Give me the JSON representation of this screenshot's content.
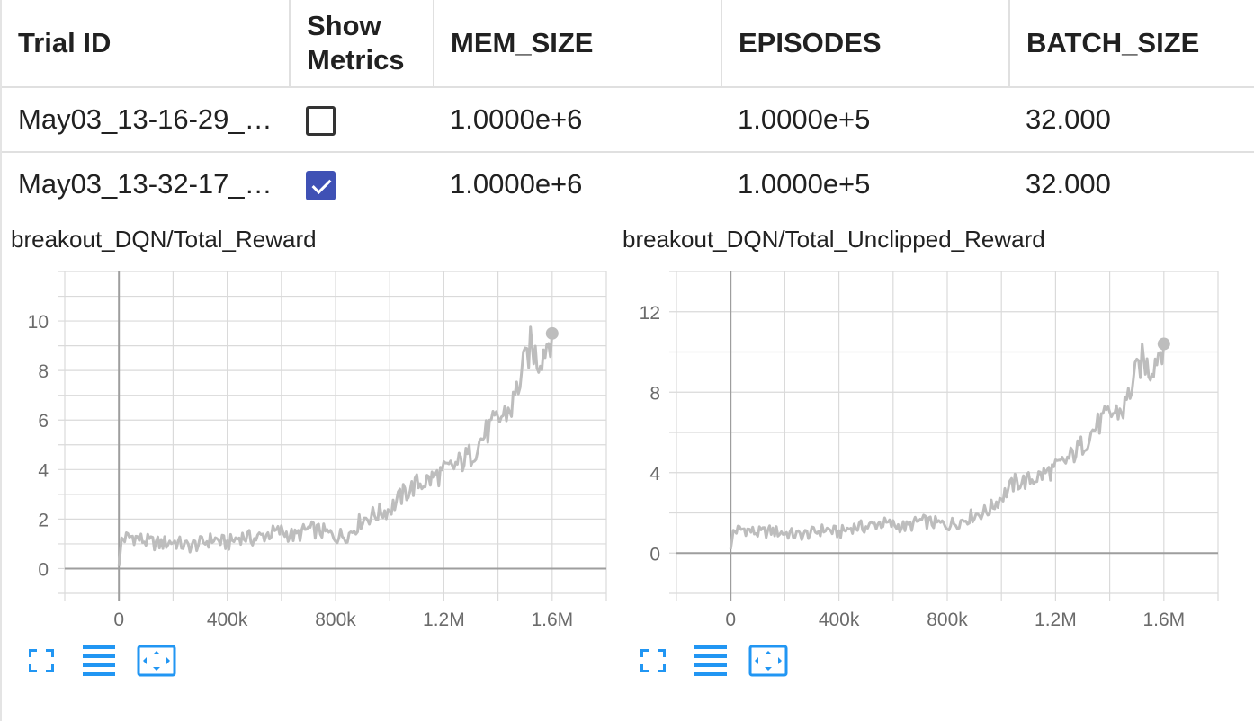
{
  "table": {
    "headers": [
      "Trial ID",
      "Show\nMetrics",
      "MEM_SIZE",
      "EPISODES",
      "BATCH_SIZE"
    ],
    "rows": [
      {
        "trial_id": "May03_13-16-29_…",
        "show_metrics": false,
        "mem_size": "1.0000e+6",
        "episodes": "1.0000e+5",
        "batch_size": "32.000"
      },
      {
        "trial_id": "May03_13-32-17_…",
        "show_metrics": true,
        "mem_size": "1.0000e+6",
        "episodes": "1.0000e+5",
        "batch_size": "32.000"
      }
    ]
  },
  "colors": {
    "series_line": "#bdbdbd",
    "checkbox_checked": "#3f51b5",
    "toolbar_icon": "#2196f3",
    "grid": "#dadada",
    "axis": "#9e9e9e"
  },
  "toolbar_icons": [
    "fullscreen-icon",
    "list-icon",
    "fit-domain-icon"
  ],
  "chart_data": [
    {
      "type": "line",
      "title": "breakout_DQN/Total_Reward",
      "xlim": [
        -200000,
        1800000
      ],
      "ylim": [
        -1,
        12
      ],
      "x_ticks": [
        0,
        400000,
        800000,
        1200000,
        1600000
      ],
      "x_tick_labels": [
        "0",
        "400k",
        "800k",
        "1.2M",
        "1.6M"
      ],
      "y_ticks": [
        0,
        2,
        4,
        6,
        8,
        10
      ],
      "y_tick_labels": [
        "0",
        "2",
        "4",
        "6",
        "8",
        "10"
      ],
      "grid": true,
      "series": [
        {
          "x": [
            0,
            10000,
            50000,
            100000,
            150000,
            200000,
            250000,
            300000,
            350000,
            400000,
            450000,
            500000,
            550000,
            600000,
            650000,
            700000,
            750000,
            800000,
            850000,
            900000,
            950000,
            1000000,
            1050000,
            1100000,
            1150000,
            1200000,
            1250000,
            1300000,
            1350000,
            1400000,
            1450000,
            1500000,
            1520000,
            1550000,
            1580000,
            1600000
          ],
          "y": [
            0.1,
            1.2,
            1.3,
            1.1,
            1.0,
            1.1,
            0.9,
            1.0,
            1.2,
            1.0,
            1.3,
            1.2,
            1.4,
            1.5,
            1.3,
            1.6,
            1.5,
            1.3,
            1.4,
            2.0,
            2.2,
            2.4,
            3.0,
            3.4,
            3.6,
            3.9,
            4.2,
            4.6,
            5.4,
            6.0,
            6.5,
            8.3,
            9.0,
            8.4,
            9.1,
            9.5
          ]
        }
      ]
    },
    {
      "type": "line",
      "title": "breakout_DQN/Total_Unclipped_Reward",
      "xlim": [
        -200000,
        1800000
      ],
      "ylim": [
        -2,
        14
      ],
      "x_ticks": [
        0,
        400000,
        800000,
        1200000,
        1600000
      ],
      "x_tick_labels": [
        "0",
        "400k",
        "800k",
        "1.2M",
        "1.6M"
      ],
      "y_ticks": [
        0,
        4,
        8,
        12
      ],
      "y_tick_labels": [
        "0",
        "4",
        "8",
        "12"
      ],
      "grid": true,
      "series": [
        {
          "x": [
            0,
            10000,
            50000,
            100000,
            150000,
            200000,
            250000,
            300000,
            350000,
            400000,
            450000,
            500000,
            550000,
            600000,
            650000,
            700000,
            750000,
            800000,
            850000,
            900000,
            950000,
            1000000,
            1050000,
            1100000,
            1150000,
            1200000,
            1250000,
            1300000,
            1350000,
            1400000,
            1450000,
            1500000,
            1520000,
            1550000,
            1580000,
            1600000
          ],
          "y": [
            0.2,
            1.1,
            1.2,
            1.0,
            1.1,
            1.0,
            0.9,
            1.0,
            1.2,
            1.0,
            1.3,
            1.3,
            1.5,
            1.4,
            1.3,
            1.6,
            1.5,
            1.4,
            1.6,
            1.9,
            2.1,
            2.8,
            3.5,
            3.6,
            3.9,
            4.2,
            4.7,
            5.4,
            6.3,
            6.9,
            7.1,
            9.0,
            9.6,
            9.1,
            10.0,
            10.4
          ]
        }
      ]
    }
  ]
}
